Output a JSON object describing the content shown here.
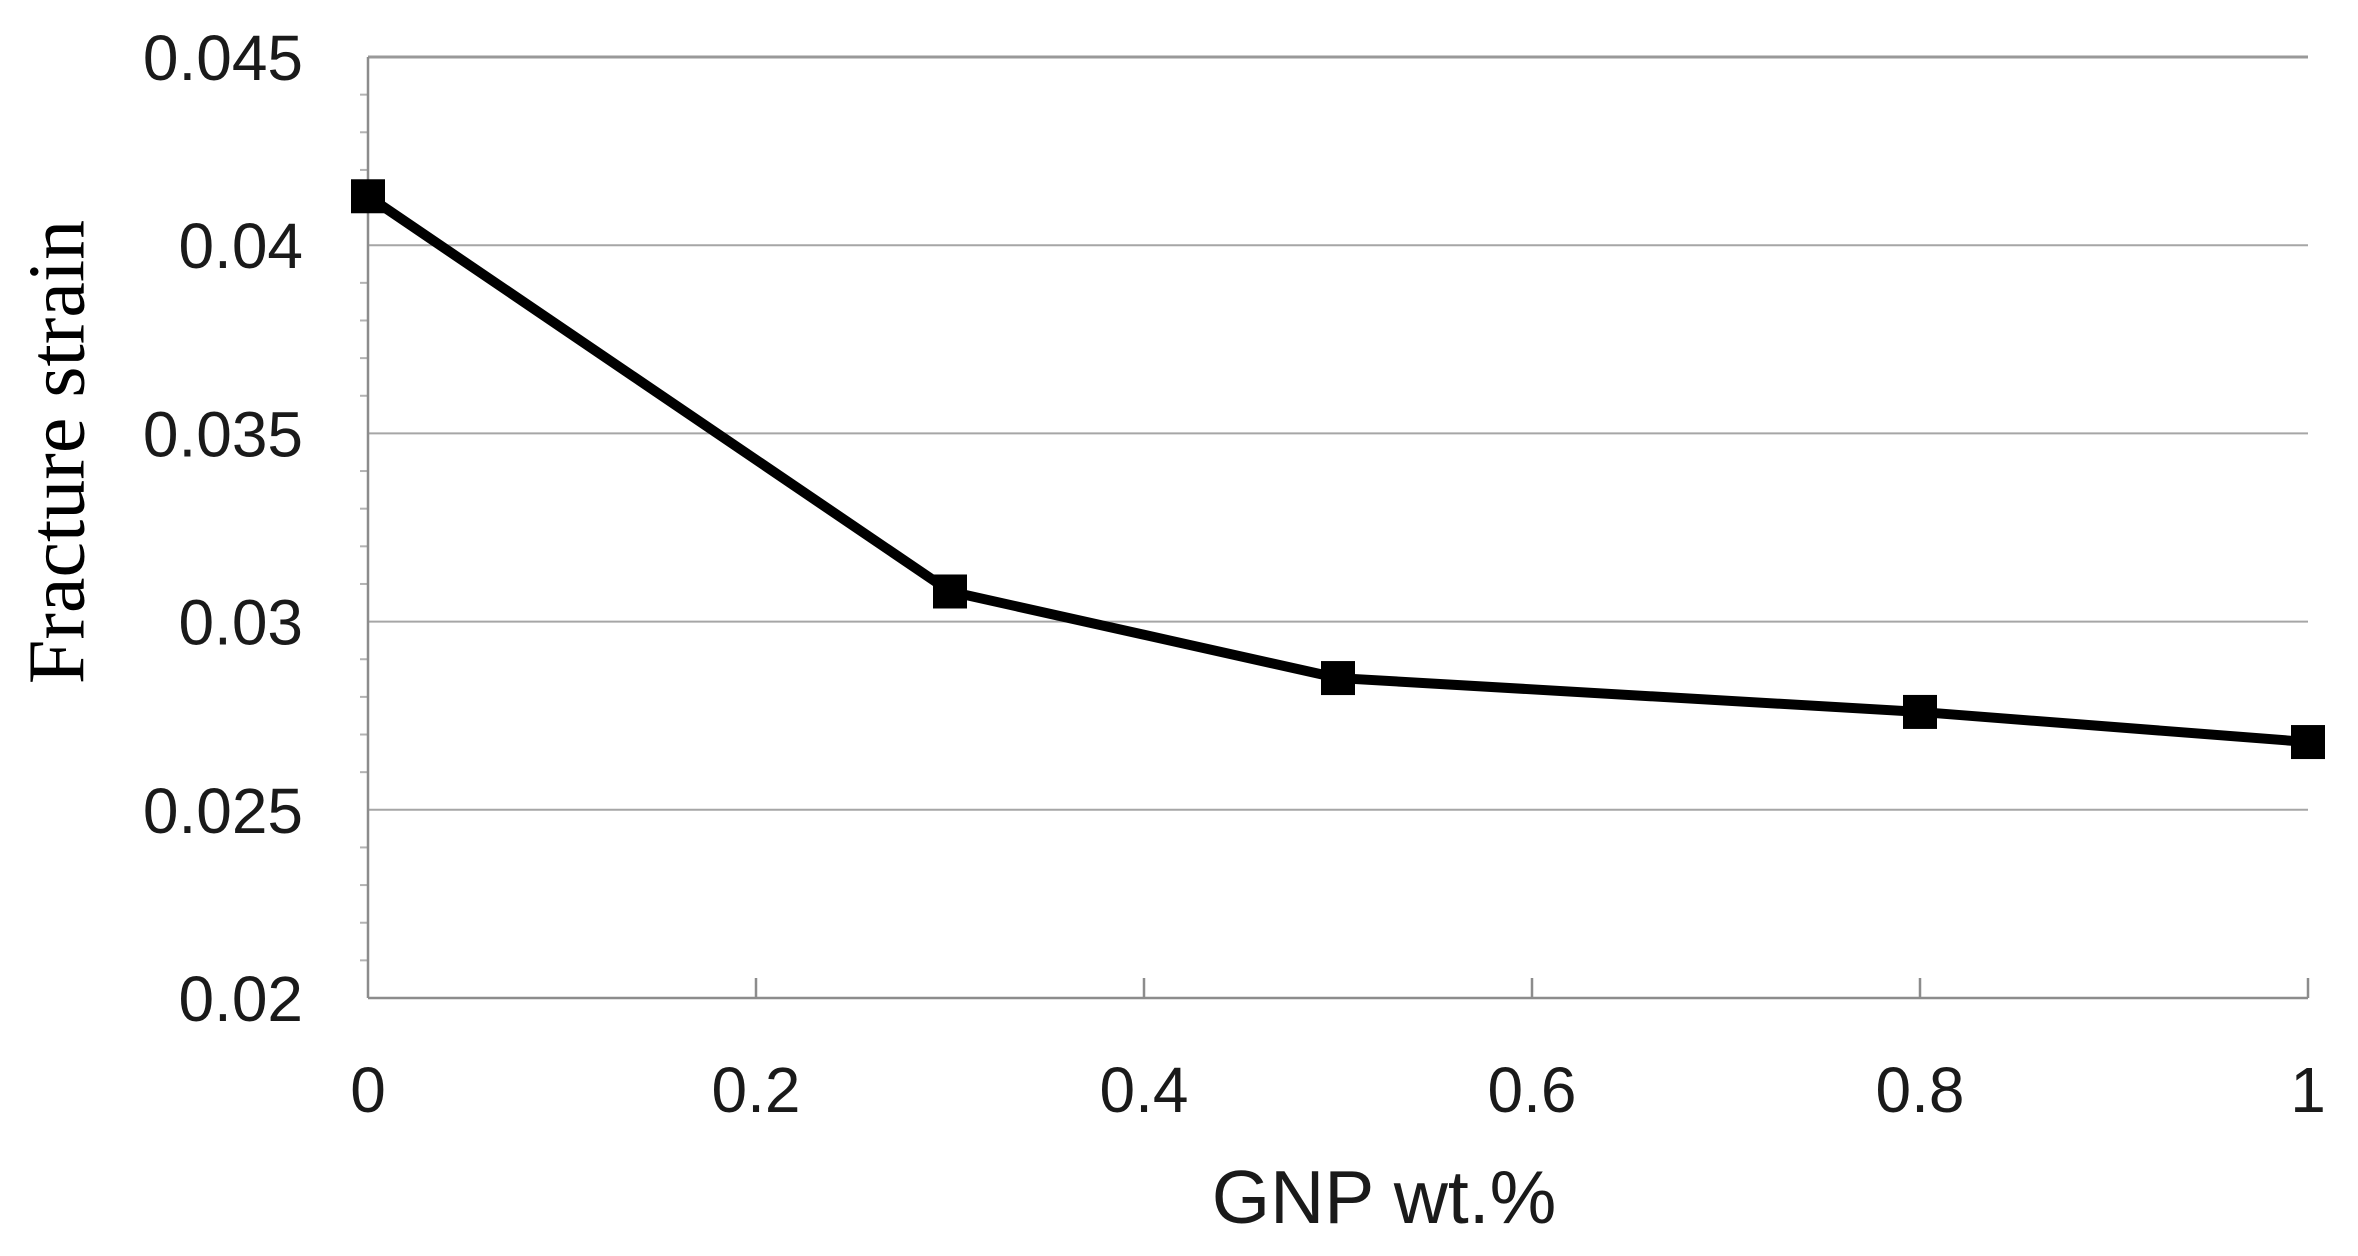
{
  "figure": {
    "background": "#ffffff"
  },
  "chart_data": {
    "type": "line",
    "title": "",
    "xlabel": "GNP wt.%",
    "ylabel": "Fracture strain",
    "x": [
      0,
      0.3,
      0.5,
      0.8,
      1
    ],
    "series": [
      {
        "name": "Fracture strain",
        "values": [
          0.0413,
          0.0308,
          0.0285,
          0.0276,
          0.0268
        ]
      }
    ],
    "xlim": [
      0,
      1
    ],
    "ylim": [
      0.02,
      0.045
    ],
    "x_ticks": [
      0,
      0.2,
      0.4,
      0.6,
      0.8,
      1
    ],
    "x_tick_labels": [
      "0",
      "0.2",
      "0.4",
      "0.6",
      "0.8",
      "1"
    ],
    "y_ticks": [
      0.02,
      0.025,
      0.03,
      0.035,
      0.04,
      0.045
    ],
    "y_tick_labels": [
      "0.02",
      "0.025",
      "0.03",
      "0.035",
      "0.04",
      "0.045"
    ],
    "y_minor_tick_step": 0.001,
    "grid": "horizontal",
    "legend": "none",
    "line_color": "#000000",
    "line_width": 10,
    "marker": "square",
    "marker_size": 34,
    "gridline_color": "#a6a6a6",
    "top_gridline_color": "#999999",
    "axis_color": "#8c8c8c",
    "minor_tick_color": "#b3b3b3",
    "tick_label_color": "#1a1a1a",
    "tick_font_size": 64
  }
}
